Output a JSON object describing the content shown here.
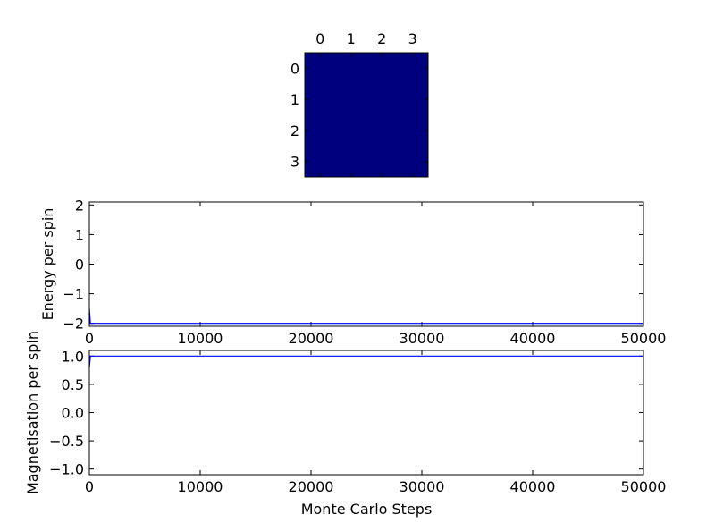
{
  "chart_data": [
    {
      "type": "heatmap",
      "x_ticks": [
        "0",
        "1",
        "2",
        "3"
      ],
      "y_ticks": [
        "0",
        "1",
        "2",
        "3"
      ],
      "values": [
        [
          -1,
          -1,
          -1,
          -1
        ],
        [
          -1,
          -1,
          -1,
          -1
        ],
        [
          -1,
          -1,
          -1,
          -1
        ],
        [
          -1,
          -1,
          -1,
          -1
        ]
      ],
      "color": "#00007f"
    },
    {
      "type": "line",
      "ylabel": "Energy per spin",
      "xlim": [
        0,
        50000
      ],
      "ylim": [
        -2.1,
        2.1
      ],
      "x_ticks": [
        0,
        10000,
        20000,
        30000,
        40000,
        50000
      ],
      "x_tick_labels": [
        "0",
        "10000",
        "20000",
        "30000",
        "40000",
        "50000"
      ],
      "y_ticks": [
        2,
        1,
        0,
        -1,
        -2
      ],
      "y_tick_labels": [
        "2",
        "1",
        "0",
        "−1",
        "−2"
      ],
      "series": [
        {
          "color": "#0000ff",
          "x": [
            0,
            50,
            100,
            200,
            400,
            50000
          ],
          "y": [
            -1.5,
            -1.75,
            -2.0,
            -2.0,
            -2.0,
            -2.0
          ]
        }
      ]
    },
    {
      "type": "line",
      "ylabel": "Magnetisation per spin",
      "xlabel": "Monte Carlo Steps",
      "xlim": [
        0,
        50000
      ],
      "ylim": [
        -1.1,
        1.1
      ],
      "x_ticks": [
        0,
        10000,
        20000,
        30000,
        40000,
        50000
      ],
      "x_tick_labels": [
        "0",
        "10000",
        "20000",
        "30000",
        "40000",
        "50000"
      ],
      "y_ticks": [
        1.0,
        0.5,
        0.0,
        -0.5,
        -1.0
      ],
      "y_tick_labels": [
        "1.0",
        "0.5",
        "0.0",
        "−0.5",
        "−1.0"
      ],
      "series": [
        {
          "color": "#0000ff",
          "x": [
            0,
            50,
            100,
            200,
            400,
            50000
          ],
          "y": [
            0.8,
            0.9,
            1.0,
            1.0,
            1.0,
            1.0
          ]
        }
      ]
    }
  ]
}
